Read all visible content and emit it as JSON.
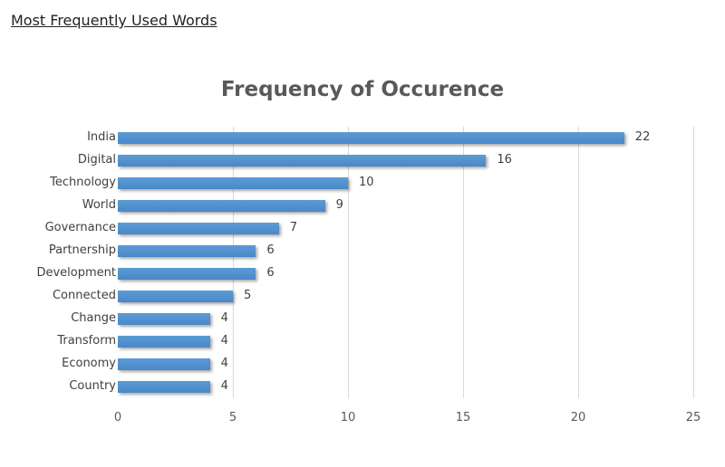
{
  "page": {
    "heading": "Most Frequently Used Words"
  },
  "chart_data": {
    "type": "bar",
    "orientation": "horizontal",
    "title": "Frequency of Occurence",
    "xlabel": "",
    "ylabel": "",
    "categories": [
      "India",
      "Digital",
      "Technology",
      "World",
      "Governance",
      "Partnership",
      "Development",
      "Connected",
      "Change",
      "Transform",
      "Economy",
      "Country"
    ],
    "values": [
      22,
      16,
      10,
      9,
      7,
      6,
      6,
      5,
      4,
      4,
      4,
      4
    ],
    "xlim": [
      0,
      25
    ],
    "xticks": [
      "0",
      "5",
      "10",
      "15",
      "20",
      "25"
    ],
    "grid": true,
    "legend": "none",
    "data_labels": true,
    "bar_color": "#5b9bd5"
  }
}
